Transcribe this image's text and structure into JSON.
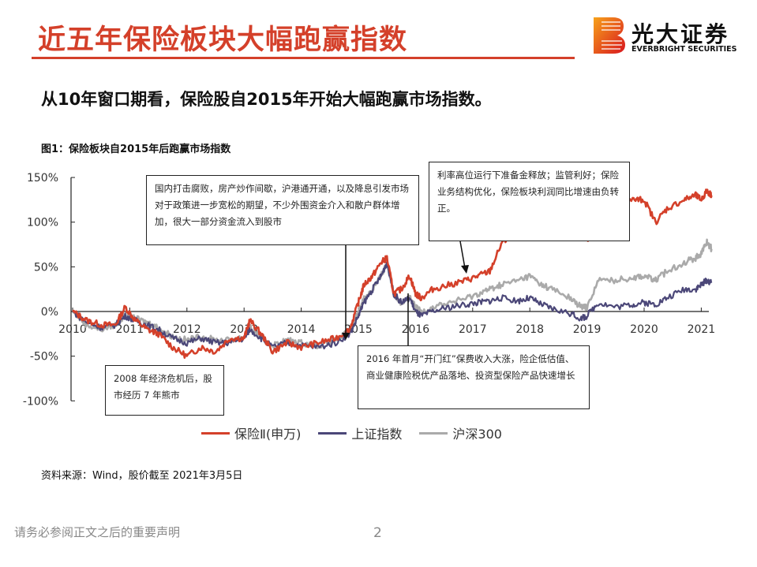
{
  "header": {
    "title": "近五年保险板块大幅跑赢指数",
    "logo_cn": "光大证券",
    "logo_en": "EVERBRIGHT SECURITIES",
    "brand_color": "#d4402a"
  },
  "subtitle": "从10年窗口期看，保险股自2015年开始大幅跑赢市场指数。",
  "figure_caption": "图1：保险板块自2015年后跑赢市场指数",
  "annotations": {
    "policy": "国内打击腐败，房产炒作间歇，沪港通开通，以及降息引发市场对于政策进一步宽松的期望，不少外围资金介入和散户群体增加，很大一部分资金流入到股市",
    "crisis": "2008 年经济危机后，股市经历 7 年熊市",
    "y2016": "2016 年首月“开门红”保费收入大涨，险企低估值、商业健康险税优产品落地、投资型保险产品快速增长",
    "rates": "利率高位运行下准备金释放；监管利好；保险业务结构优化，保险板块利润同比增速由负转正。"
  },
  "chart_data": {
    "type": "line",
    "title": "保险板块自2015年后跑赢市场指数",
    "ylim": [
      -100,
      150
    ],
    "yticks": [
      "150%",
      "100%",
      "50%",
      "0%",
      "-50%",
      "-100%"
    ],
    "ytick_values": [
      150,
      100,
      50,
      0,
      -50,
      -100
    ],
    "xticks": [
      "2010",
      "2011",
      "2012",
      "2013",
      "2014",
      "2015",
      "2016",
      "2017",
      "2018",
      "2019",
      "2020",
      "2021"
    ],
    "legend": "bottom",
    "series": [
      {
        "name": "保险Ⅱ(申万)",
        "color": "#d4402a",
        "x": [
          2010,
          2010.25,
          2010.5,
          2010.75,
          2010.92,
          2011.1,
          2011.3,
          2011.5,
          2011.75,
          2012.0,
          2012.25,
          2012.5,
          2012.75,
          2013.0,
          2013.1,
          2013.3,
          2013.5,
          2013.75,
          2014.0,
          2014.3,
          2014.6,
          2014.85,
          2015.0,
          2015.1,
          2015.25,
          2015.4,
          2015.5,
          2015.62,
          2015.75,
          2015.9,
          2016.0,
          2016.1,
          2016.3,
          2016.6,
          2016.9,
          2017.1,
          2017.3,
          2017.5,
          2017.8,
          2018.0,
          2018.2,
          2018.4,
          2018.7,
          2018.9,
          2019.0,
          2019.2,
          2019.5,
          2019.8,
          2020.0,
          2020.2,
          2020.4,
          2020.7,
          2020.9,
          2021.0,
          2021.1,
          2021.18
        ],
        "y": [
          0,
          -10,
          -15,
          -15,
          5,
          -10,
          -20,
          -25,
          -40,
          -50,
          -40,
          -45,
          -30,
          -30,
          -10,
          -25,
          -45,
          -35,
          -40,
          -35,
          -30,
          -20,
          10,
          30,
          40,
          55,
          60,
          20,
          25,
          40,
          20,
          15,
          25,
          30,
          35,
          40,
          45,
          75,
          95,
          115,
          105,
          90,
          85,
          90,
          80,
          110,
          120,
          125,
          125,
          100,
          115,
          125,
          130,
          125,
          135,
          130
        ]
      },
      {
        "name": "上证指数",
        "color": "#4b4778",
        "x": [
          2010,
          2010.25,
          2010.5,
          2010.75,
          2010.92,
          2011.1,
          2011.3,
          2011.5,
          2011.75,
          2012.0,
          2012.25,
          2012.5,
          2012.75,
          2013.0,
          2013.1,
          2013.3,
          2013.5,
          2013.75,
          2014.0,
          2014.3,
          2014.6,
          2014.85,
          2015.0,
          2015.1,
          2015.25,
          2015.4,
          2015.5,
          2015.62,
          2015.75,
          2015.9,
          2016.0,
          2016.1,
          2016.3,
          2016.6,
          2016.9,
          2017.1,
          2017.3,
          2017.5,
          2017.8,
          2018.0,
          2018.2,
          2018.4,
          2018.7,
          2018.9,
          2019.0,
          2019.2,
          2019.5,
          2019.8,
          2020.0,
          2020.2,
          2020.4,
          2020.7,
          2020.9,
          2021.0,
          2021.1,
          2021.18
        ],
        "y": [
          0,
          -12,
          -18,
          -15,
          -5,
          -10,
          -15,
          -20,
          -30,
          -35,
          -30,
          -35,
          -35,
          -30,
          -20,
          -30,
          -40,
          -35,
          -38,
          -40,
          -35,
          -25,
          -5,
          10,
          25,
          40,
          55,
          20,
          10,
          15,
          0,
          -5,
          0,
          5,
          8,
          10,
          12,
          15,
          12,
          15,
          8,
          3,
          -2,
          -8,
          -5,
          10,
          5,
          8,
          10,
          8,
          15,
          25,
          25,
          30,
          35,
          32
        ]
      },
      {
        "name": "沪深300",
        "color": "#aaaaaa",
        "x": [
          2010,
          2010.25,
          2010.5,
          2010.75,
          2010.92,
          2011.1,
          2011.3,
          2011.5,
          2011.75,
          2012.0,
          2012.25,
          2012.5,
          2012.75,
          2013.0,
          2013.1,
          2013.3,
          2013.5,
          2013.75,
          2014.0,
          2014.3,
          2014.6,
          2014.85,
          2015.0,
          2015.1,
          2015.25,
          2015.4,
          2015.5,
          2015.62,
          2015.75,
          2015.9,
          2016.0,
          2016.1,
          2016.3,
          2016.6,
          2016.9,
          2017.1,
          2017.3,
          2017.5,
          2017.8,
          2018.0,
          2018.2,
          2018.4,
          2018.7,
          2018.9,
          2019.0,
          2019.2,
          2019.5,
          2019.8,
          2020.0,
          2020.2,
          2020.4,
          2020.7,
          2020.9,
          2021.0,
          2021.1,
          2021.18
        ],
        "y": [
          0,
          -15,
          -20,
          -15,
          -5,
          -8,
          -12,
          -18,
          -28,
          -32,
          -28,
          -32,
          -32,
          -28,
          -18,
          -28,
          -38,
          -32,
          -35,
          -38,
          -32,
          -22,
          0,
          15,
          25,
          40,
          55,
          20,
          10,
          15,
          5,
          0,
          5,
          10,
          15,
          20,
          25,
          30,
          35,
          40,
          30,
          25,
          15,
          5,
          5,
          35,
          35,
          38,
          40,
          35,
          45,
          55,
          60,
          65,
          78,
          70
        ]
      }
    ]
  },
  "legend_labels": [
    "保险Ⅱ(申万)",
    "上证指数",
    "沪深300"
  ],
  "source": "资料来源：Wind，股价截至 2021年3月5日",
  "footer": {
    "disclaimer": "请务必参阅正文之后的重要声明",
    "page": "2"
  }
}
